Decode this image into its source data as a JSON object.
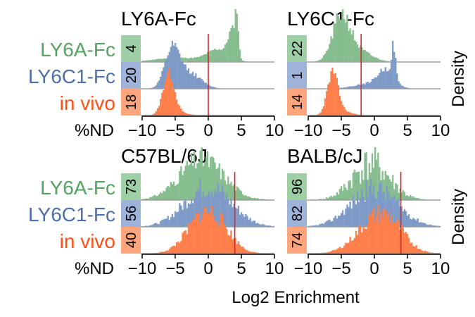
{
  "colors": {
    "ly6a": "#52a35f",
    "ly6c1": "#4e6fa8",
    "invivo": "#ff4f14",
    "hist_ly6a": "#86bd8f",
    "hist_ly6c1": "#7e9bc8",
    "hist_invivo": "#ff7f4a",
    "box_ly6a": "#9ecfa6",
    "box_ly6c1": "#9fb2d9",
    "box_invivo": "#ffa57e",
    "threshold": "#d6262e",
    "baseline": "#9e9e9e"
  },
  "row_labels": [
    "LY6A-Fc",
    "LY6C1-Fc",
    "in vivo"
  ],
  "nd_label": "%ND",
  "ylabel": "Density",
  "xlabel": "Log2 Enrichment",
  "chart_data": [
    {
      "type": "histogram",
      "title": "LY6A-Fc",
      "xlim": [
        -10,
        10
      ],
      "xticks": [
        "−10",
        "−5",
        "0",
        "5",
        "10"
      ],
      "threshold_x": 0,
      "nd_percent": [
        "4",
        "20",
        "18"
      ],
      "series": [
        {
          "name": "LY6A-Fc",
          "peaks": [
            {
              "mu": 4.3,
              "sd": 0.25,
              "w": 2.2
            },
            {
              "mu": 3.6,
              "sd": 0.6,
              "w": 1.6
            },
            {
              "mu": 1.5,
              "sd": 1.6,
              "w": 0.7
            },
            {
              "mu": -4.5,
              "sd": 3.5,
              "w": 0.25
            }
          ],
          "noise": 0.12,
          "seed": 11
        },
        {
          "name": "LY6C1-Fc",
          "peaks": [
            {
              "mu": -5.5,
              "sd": 1.1,
              "w": 1.0
            },
            {
              "mu": -3.0,
              "sd": 1.8,
              "w": 0.45
            }
          ],
          "noise": 0.15,
          "seed": 12
        },
        {
          "name": "in vivo",
          "peaks": [
            {
              "mu": -6.0,
              "sd": 0.85,
              "w": 1.0
            },
            {
              "mu": -5.0,
              "sd": 1.6,
              "w": 0.08
            }
          ],
          "noise": 0.12,
          "seed": 13
        }
      ]
    },
    {
      "type": "histogram",
      "title": "LY6C1-Fc",
      "xlim": [
        -10,
        10
      ],
      "xticks": [
        "−10",
        "−5",
        "0",
        "5",
        "10"
      ],
      "threshold_x": -2,
      "nd_percent": [
        "22",
        "1",
        "14"
      ],
      "series": [
        {
          "name": "LY6A-Fc",
          "peaks": [
            {
              "mu": -5.0,
              "sd": 1.3,
              "w": 1.0
            },
            {
              "mu": -2.5,
              "sd": 2.0,
              "w": 0.25
            }
          ],
          "noise": 0.2,
          "seed": 21
        },
        {
          "name": "LY6C1-Fc",
          "peaks": [
            {
              "mu": 2.9,
              "sd": 0.3,
              "w": 1.5
            },
            {
              "mu": 1.8,
              "sd": 1.2,
              "w": 0.8
            },
            {
              "mu": -0.5,
              "sd": 2.5,
              "w": 0.25
            }
          ],
          "noise": 0.15,
          "seed": 22
        },
        {
          "name": "in vivo",
          "peaks": [
            {
              "mu": -6.3,
              "sd": 0.8,
              "w": 1.0
            },
            {
              "mu": -5.0,
              "sd": 1.5,
              "w": 0.1
            }
          ],
          "noise": 0.12,
          "seed": 23
        }
      ]
    },
    {
      "type": "histogram",
      "title": "C57BL/6J",
      "xlim": [
        -10,
        10
      ],
      "xticks": [
        "−10",
        "−5",
        "0",
        "5",
        "10"
      ],
      "threshold_x": 4,
      "nd_percent": [
        "73",
        "56",
        "40"
      ],
      "series": [
        {
          "name": "LY6A-Fc",
          "peaks": [
            {
              "mu": -1.0,
              "sd": 3.3,
              "w": 1.0
            }
          ],
          "noise": 0.3,
          "seed": 31
        },
        {
          "name": "LY6C1-Fc",
          "peaks": [
            {
              "mu": 0.0,
              "sd": 3.5,
              "w": 1.0
            }
          ],
          "noise": 0.3,
          "seed": 32
        },
        {
          "name": "in vivo",
          "peaks": [
            {
              "mu": -0.5,
              "sd": 2.6,
              "w": 1.0
            },
            {
              "mu": 2.5,
              "sd": 2.0,
              "w": 0.2
            }
          ],
          "noise": 0.25,
          "seed": 33
        }
      ]
    },
    {
      "type": "histogram",
      "title": "BALB/cJ",
      "xlim": [
        -10,
        10
      ],
      "xticks": [
        "−10",
        "−5",
        "0",
        "5",
        "10"
      ],
      "threshold_x": 4,
      "nd_percent": [
        "96",
        "82",
        "74"
      ],
      "series": [
        {
          "name": "LY6A-Fc",
          "peaks": [
            {
              "mu": -0.5,
              "sd": 2.8,
              "w": 1.0
            }
          ],
          "noise": 0.5,
          "seed": 41
        },
        {
          "name": "LY6C1-Fc",
          "peaks": [
            {
              "mu": 0.0,
              "sd": 3.5,
              "w": 1.0
            }
          ],
          "noise": 0.3,
          "seed": 42
        },
        {
          "name": "in vivo",
          "peaks": [
            {
              "mu": 0.5,
              "sd": 3.0,
              "w": 1.0
            },
            {
              "mu": 3.0,
              "sd": 2.0,
              "w": 0.2
            }
          ],
          "noise": 0.25,
          "seed": 43
        }
      ]
    }
  ]
}
